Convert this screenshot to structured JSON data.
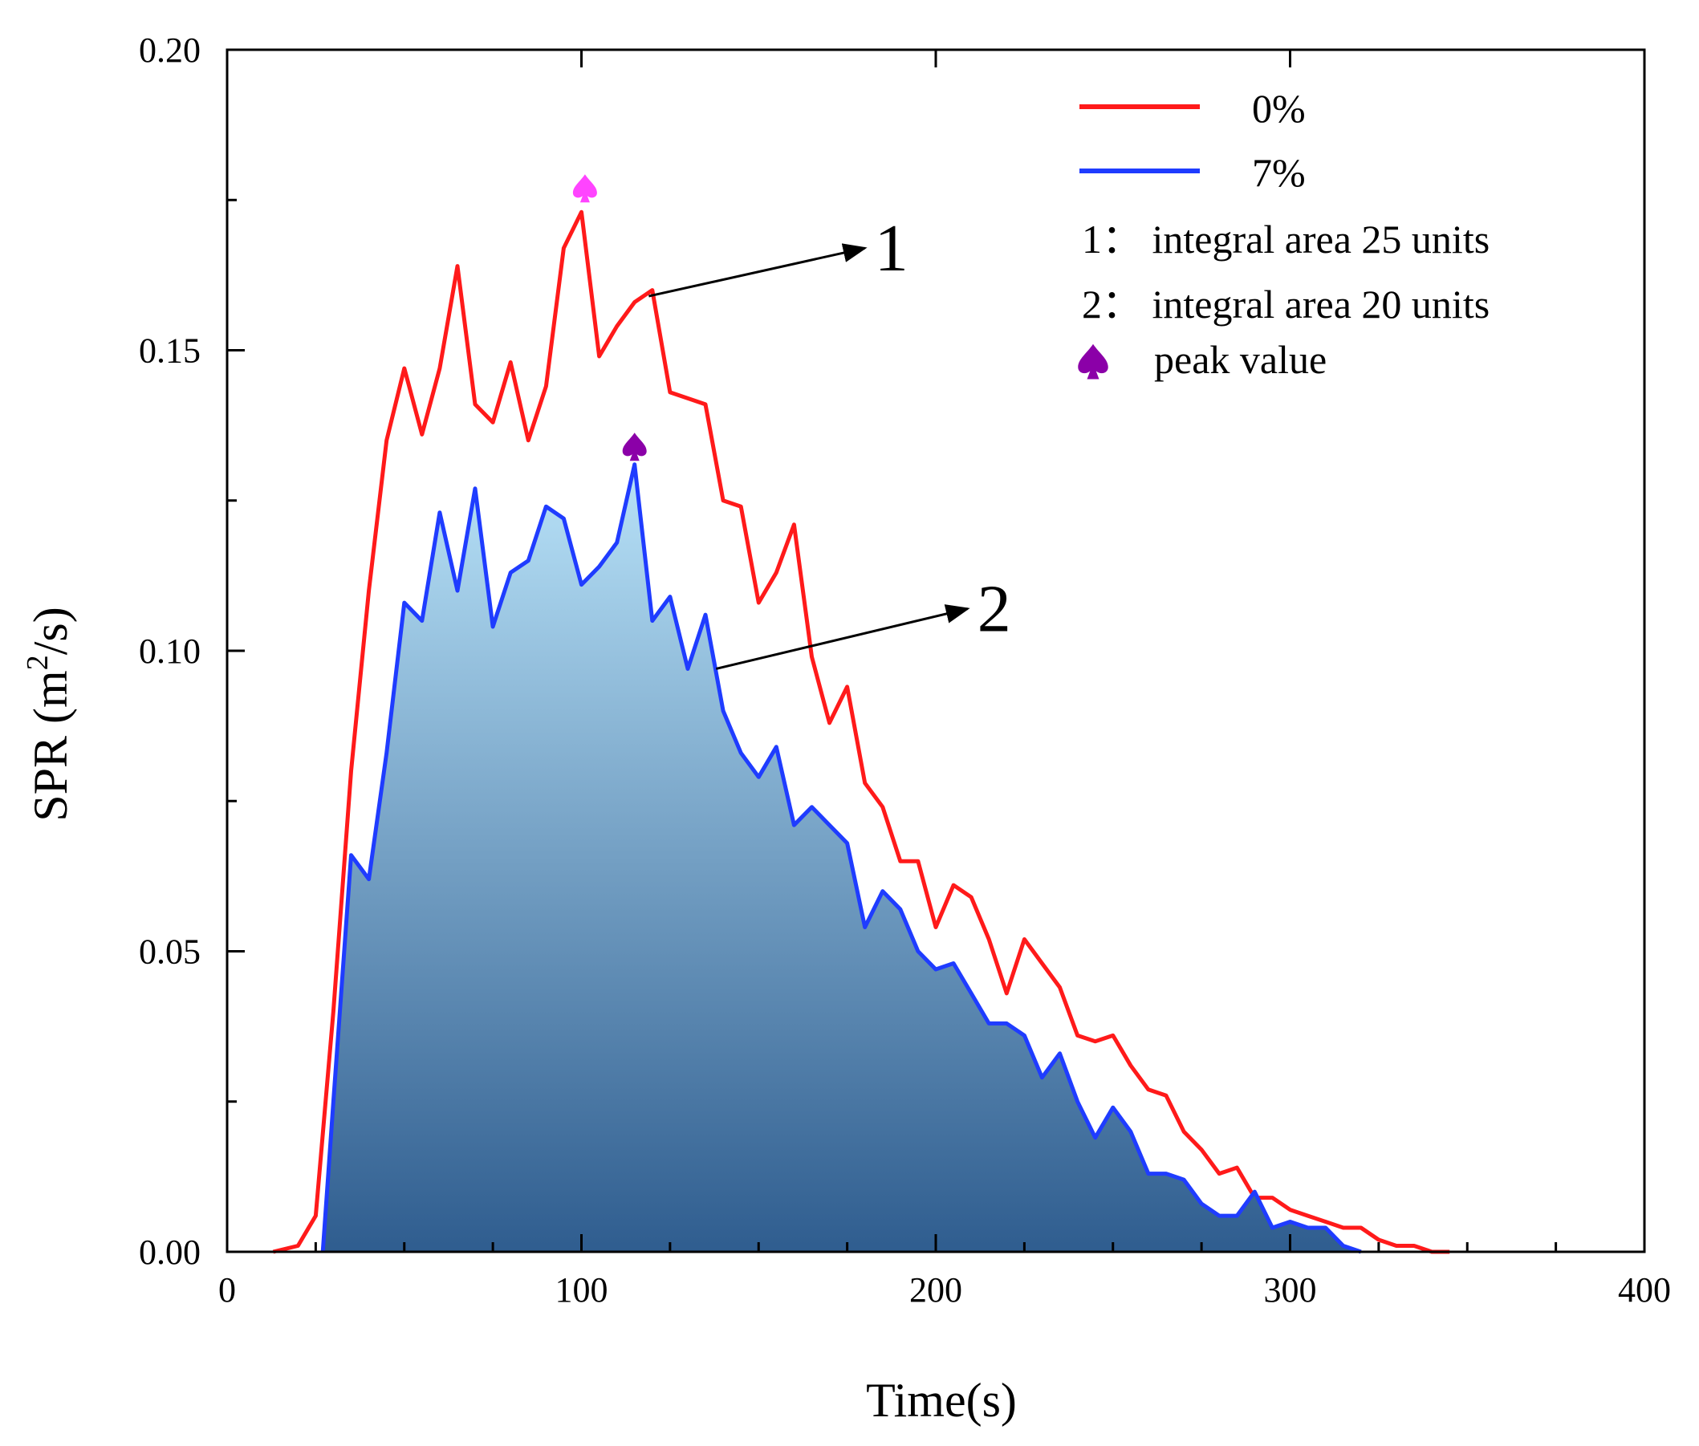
{
  "chart_data": {
    "type": "area",
    "xlabel": "Time(s)",
    "ylabel_main": "SPR (m",
    "ylabel_sup": "2",
    "ylabel_tail": "/s)",
    "xlim": [
      0,
      400
    ],
    "ylim": [
      0,
      0.2
    ],
    "x_ticks": [
      0,
      100,
      200,
      300,
      400
    ],
    "x_tick_labels": [
      "0",
      "100",
      "200",
      "300",
      "400"
    ],
    "y_ticks": [
      0,
      0.05,
      0.1,
      0.15,
      0.2
    ],
    "y_tick_labels": [
      "0.00",
      "0.05",
      "0.10",
      "0.15",
      "0.20"
    ],
    "grid": false,
    "legend_position": "top-right",
    "legend": [
      {
        "label": "0%",
        "color": "#ff1a1a",
        "kind": "line"
      },
      {
        "label": "7%",
        "color": "#1f3cff",
        "kind": "line"
      },
      {
        "label": "1：  integral area 25 units",
        "kind": "text"
      },
      {
        "label": "2：  integral area 20 units",
        "kind": "text"
      },
      {
        "label": "peak value",
        "color": "#8b00a8",
        "kind": "marker"
      }
    ],
    "series": [
      {
        "name": "0%",
        "color": "#ff1a1a",
        "fill": false,
        "x": [
          13,
          20,
          25,
          30,
          35,
          40,
          45,
          50,
          55,
          60,
          65,
          70,
          75,
          80,
          85,
          90,
          95,
          100,
          105,
          110,
          115,
          120,
          125,
          130,
          135,
          140,
          145,
          150,
          155,
          160,
          165,
          170,
          175,
          180,
          185,
          190,
          195,
          200,
          205,
          210,
          215,
          220,
          225,
          230,
          235,
          240,
          245,
          250,
          255,
          260,
          265,
          270,
          275,
          280,
          285,
          290,
          295,
          300,
          305,
          310,
          315,
          320,
          325,
          330,
          335,
          340,
          345
        ],
        "values": [
          0.0,
          0.001,
          0.006,
          0.04,
          0.08,
          0.11,
          0.135,
          0.147,
          0.136,
          0.147,
          0.164,
          0.141,
          0.138,
          0.148,
          0.135,
          0.144,
          0.167,
          0.173,
          0.149,
          0.154,
          0.158,
          0.16,
          0.143,
          0.142,
          0.141,
          0.125,
          0.124,
          0.108,
          0.113,
          0.121,
          0.099,
          0.088,
          0.094,
          0.078,
          0.074,
          0.065,
          0.065,
          0.054,
          0.061,
          0.059,
          0.052,
          0.043,
          0.052,
          0.048,
          0.044,
          0.036,
          0.035,
          0.036,
          0.031,
          0.027,
          0.026,
          0.02,
          0.017,
          0.013,
          0.014,
          0.009,
          0.009,
          0.007,
          0.006,
          0.005,
          0.004,
          0.004,
          0.002,
          0.001,
          0.001,
          0.0,
          0.0
        ]
      },
      {
        "name": "7%",
        "color": "#1f3cff",
        "fill": true,
        "fill_gradient": [
          "#b8e2f8",
          "#2f5d8f"
        ],
        "x": [
          27,
          30,
          35,
          40,
          45,
          50,
          55,
          60,
          65,
          70,
          75,
          80,
          85,
          90,
          95,
          100,
          105,
          110,
          115,
          120,
          125,
          130,
          135,
          140,
          145,
          150,
          155,
          160,
          165,
          170,
          175,
          180,
          185,
          190,
          195,
          200,
          205,
          210,
          215,
          220,
          225,
          230,
          235,
          240,
          245,
          250,
          255,
          260,
          265,
          270,
          275,
          280,
          285,
          290,
          295,
          300,
          305,
          310,
          315,
          320
        ],
        "values": [
          0.0,
          0.025,
          0.066,
          0.062,
          0.083,
          0.108,
          0.105,
          0.123,
          0.11,
          0.127,
          0.104,
          0.113,
          0.115,
          0.124,
          0.122,
          0.111,
          0.114,
          0.118,
          0.131,
          0.105,
          0.109,
          0.097,
          0.106,
          0.09,
          0.083,
          0.079,
          0.084,
          0.071,
          0.074,
          0.071,
          0.068,
          0.054,
          0.06,
          0.057,
          0.05,
          0.047,
          0.048,
          0.043,
          0.038,
          0.038,
          0.036,
          0.029,
          0.033,
          0.025,
          0.019,
          0.024,
          0.02,
          0.013,
          0.013,
          0.012,
          0.008,
          0.006,
          0.006,
          0.01,
          0.004,
          0.005,
          0.004,
          0.004,
          0.001,
          0.0
        ]
      }
    ],
    "peaks": [
      {
        "x": 101,
        "y": 0.177,
        "color": "#ff44ff"
      },
      {
        "x": 115,
        "y": 0.134,
        "color": "#8b00a8"
      }
    ],
    "annotations": [
      {
        "text": "1",
        "from": [
          119,
          0.159
        ],
        "to": [
          180,
          0.167
        ]
      },
      {
        "text": "2",
        "from": [
          138,
          0.097
        ],
        "to": [
          209,
          0.107
        ]
      }
    ]
  }
}
